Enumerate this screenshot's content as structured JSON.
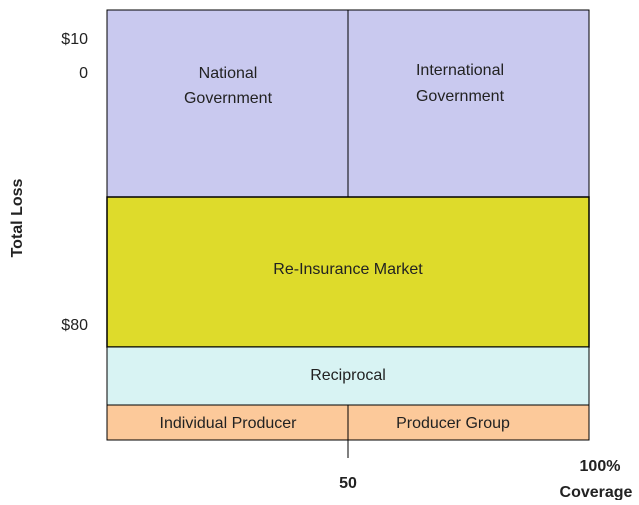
{
  "axes": {
    "y_title": "Total Loss",
    "y_labels": {
      "top": [
        "$10",
        "0"
      ],
      "mid": "$80"
    },
    "x_labels": {
      "mid": "50",
      "end": [
        "100%",
        "Coverage"
      ]
    }
  },
  "regions": {
    "national": [
      "National",
      "Government"
    ],
    "international": [
      "International",
      "Government"
    ],
    "reinsurance": "Re-Insurance Market",
    "reciprocal": "Reciprocal",
    "individual": "Individual Producer",
    "group": "Producer Group"
  }
}
